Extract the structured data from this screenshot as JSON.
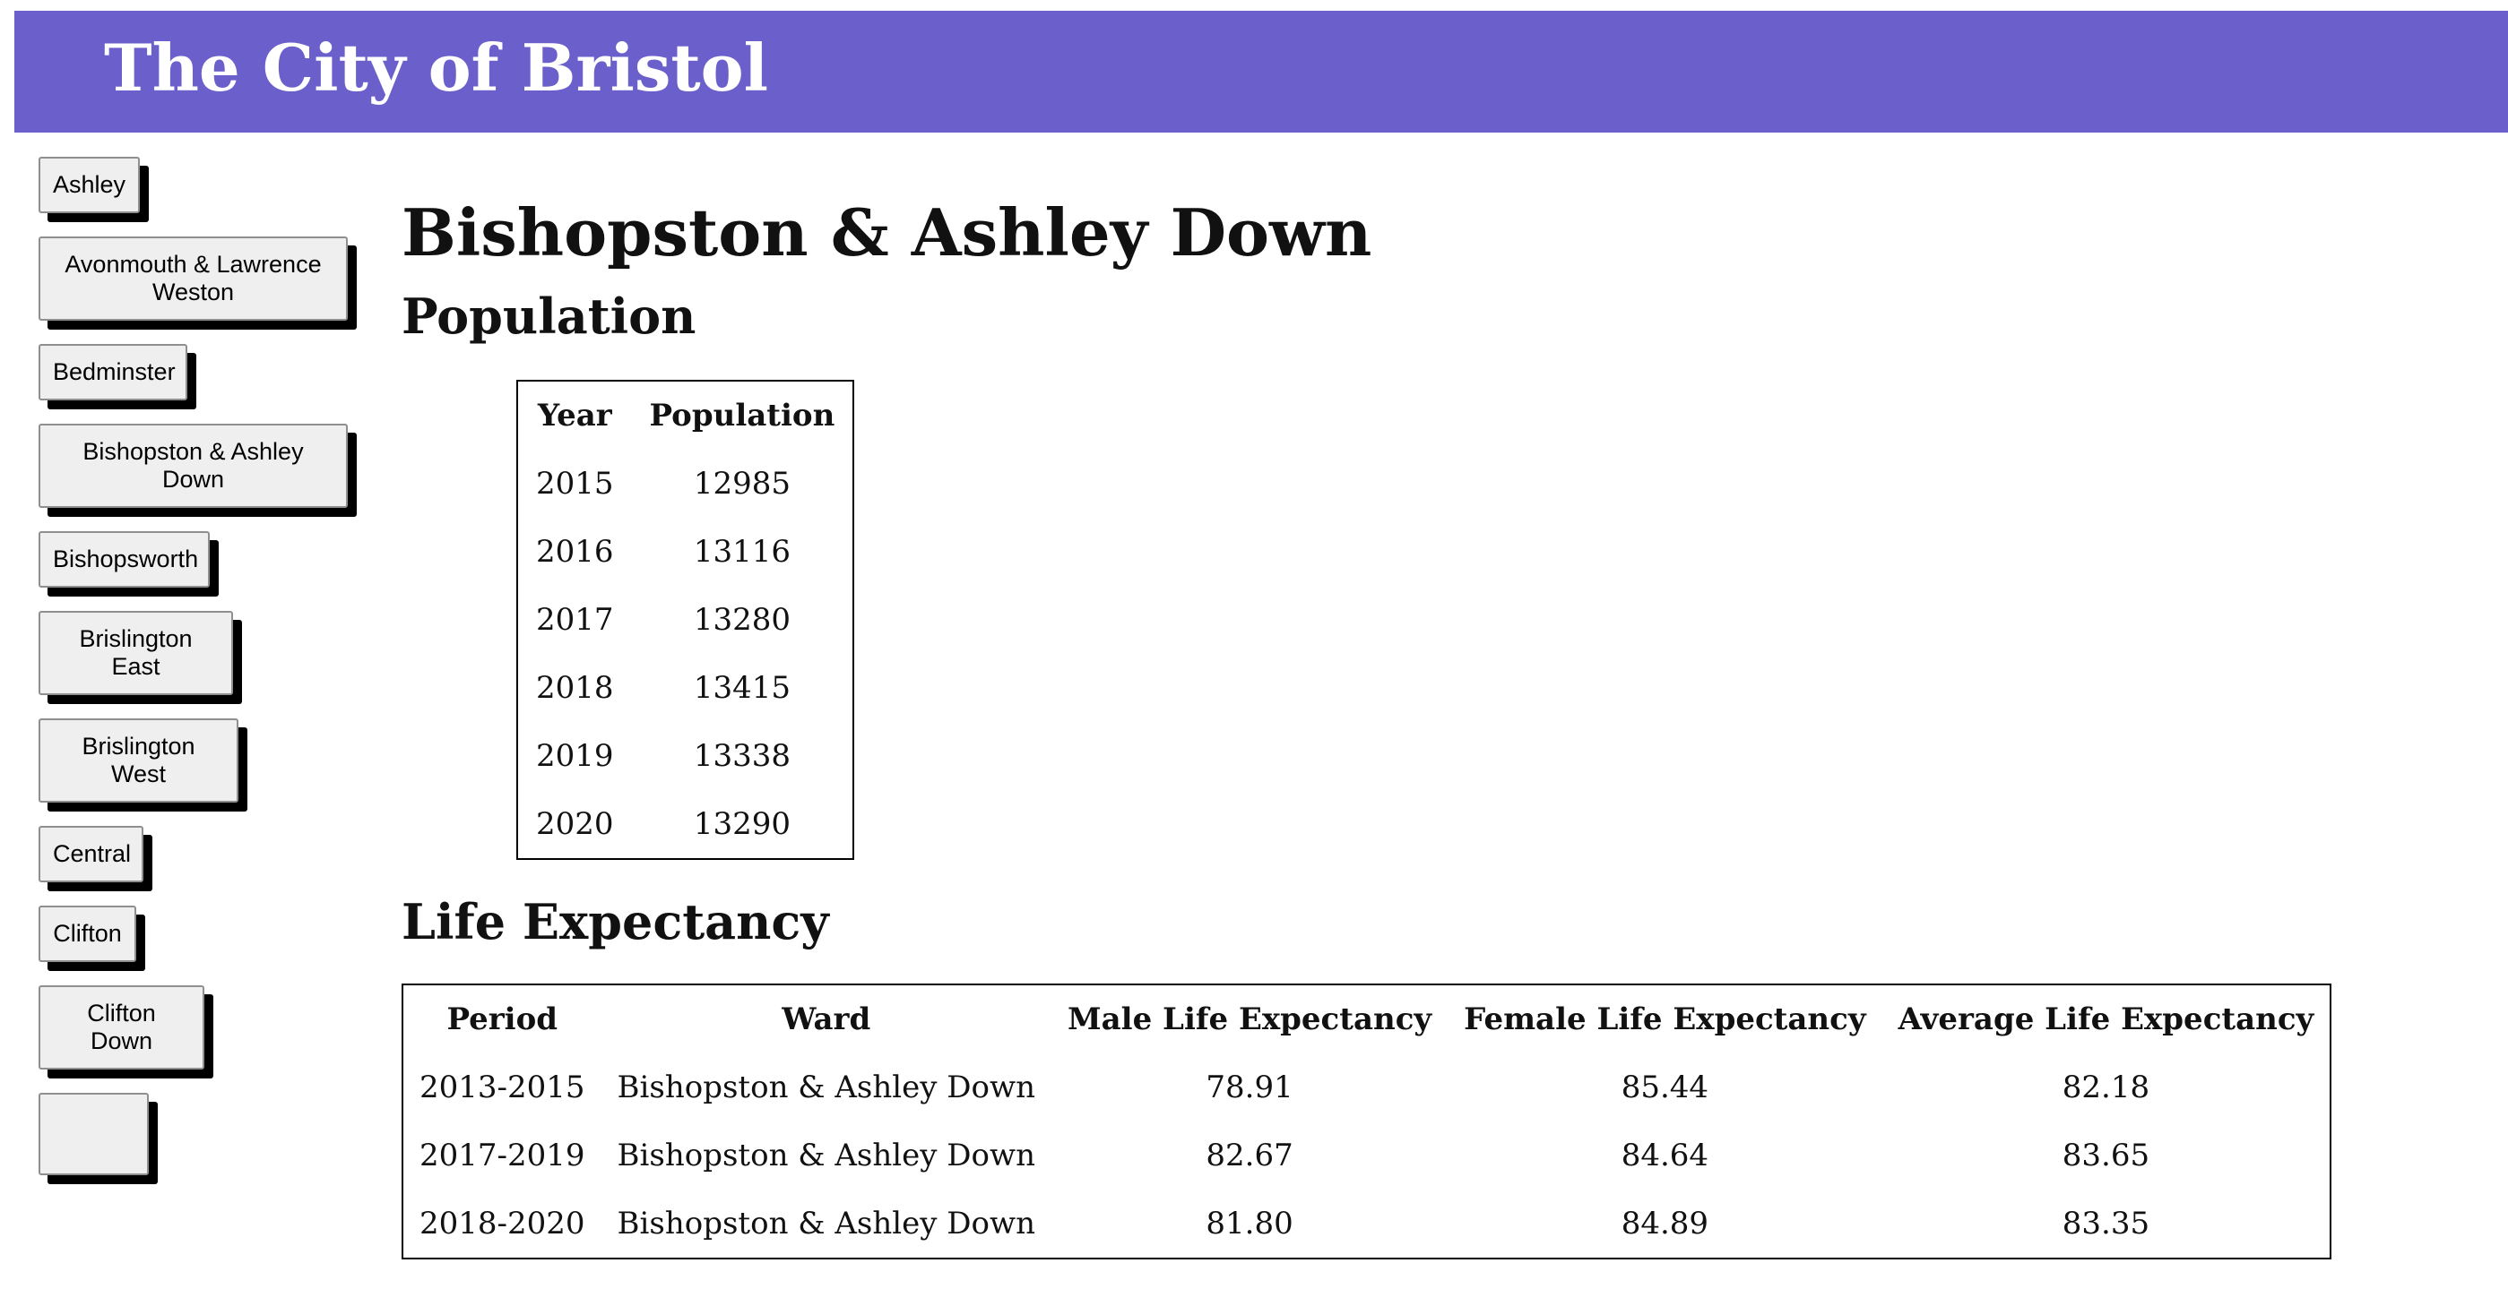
{
  "header": {
    "title": "The City of Bristol",
    "background": "#6a5fcb"
  },
  "sidebar": {
    "items": [
      {
        "label": "Ashley"
      },
      {
        "label": "Avonmouth & Lawrence Weston"
      },
      {
        "label": "Bedminster"
      },
      {
        "label": "Bishopston & Ashley Down"
      },
      {
        "label": "Bishopsworth"
      },
      {
        "label": "Brislington East"
      },
      {
        "label": "Brislington West"
      },
      {
        "label": "Central"
      },
      {
        "label": "Clifton"
      },
      {
        "label": "Clifton Down"
      },
      {
        "label": ""
      }
    ]
  },
  "main": {
    "title": "Bishopston & Ashley Down",
    "population": {
      "heading": "Population",
      "columns": [
        "Year",
        "Population"
      ],
      "rows": [
        [
          "2015",
          "12985"
        ],
        [
          "2016",
          "13116"
        ],
        [
          "2017",
          "13280"
        ],
        [
          "2018",
          "13415"
        ],
        [
          "2019",
          "13338"
        ],
        [
          "2020",
          "13290"
        ]
      ]
    },
    "life_expectancy": {
      "heading": "Life Expectancy",
      "columns": [
        "Period",
        "Ward",
        "Male Life Expectancy",
        "Female Life Expectancy",
        "Average Life Expectancy"
      ],
      "rows": [
        [
          "2013-2015",
          "Bishopston & Ashley Down",
          "78.91",
          "85.44",
          "82.18"
        ],
        [
          "2017-2019",
          "Bishopston & Ashley Down",
          "82.67",
          "84.64",
          "83.65"
        ],
        [
          "2018-2020",
          "Bishopston & Ashley Down",
          "81.80",
          "84.89",
          "83.35"
        ]
      ]
    }
  }
}
